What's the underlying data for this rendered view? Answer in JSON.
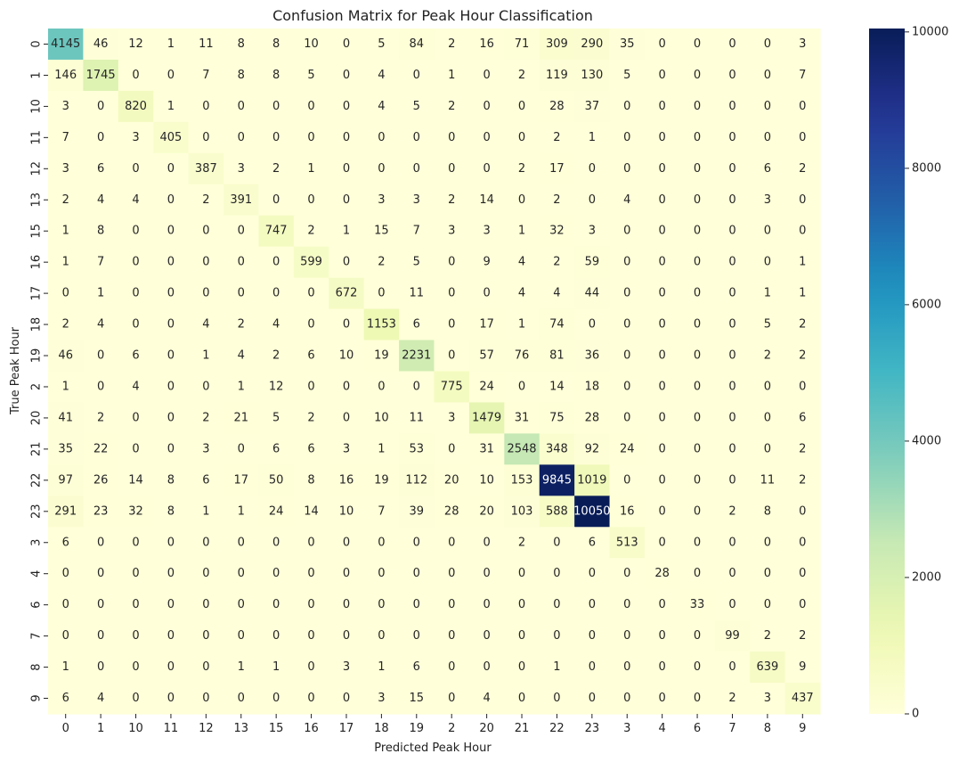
{
  "chart_data": {
    "type": "heatmap",
    "title": "Confusion Matrix for Peak Hour Classification",
    "xlabel": "Predicted Peak Hour",
    "ylabel": "True Peak Hour",
    "x_categories": [
      "0",
      "1",
      "10",
      "11",
      "12",
      "13",
      "15",
      "16",
      "17",
      "18",
      "19",
      "2",
      "20",
      "21",
      "22",
      "23",
      "3",
      "4",
      "6",
      "7",
      "8",
      "9"
    ],
    "y_categories": [
      "0",
      "1",
      "10",
      "11",
      "12",
      "13",
      "15",
      "16",
      "17",
      "18",
      "19",
      "2",
      "20",
      "21",
      "22",
      "23",
      "3",
      "4",
      "6",
      "7",
      "8",
      "9"
    ],
    "values": [
      [
        4145,
        46,
        12,
        1,
        11,
        8,
        8,
        10,
        0,
        5,
        84,
        2,
        16,
        71,
        309,
        290,
        35,
        0,
        0,
        0,
        0,
        3
      ],
      [
        146,
        1745,
        0,
        0,
        7,
        8,
        8,
        5,
        0,
        4,
        0,
        1,
        0,
        2,
        119,
        130,
        5,
        0,
        0,
        0,
        0,
        7
      ],
      [
        3,
        0,
        820,
        1,
        0,
        0,
        0,
        0,
        0,
        4,
        5,
        2,
        0,
        0,
        28,
        37,
        0,
        0,
        0,
        0,
        0,
        0
      ],
      [
        7,
        0,
        3,
        405,
        0,
        0,
        0,
        0,
        0,
        0,
        0,
        0,
        0,
        0,
        2,
        1,
        0,
        0,
        0,
        0,
        0,
        0
      ],
      [
        3,
        6,
        0,
        0,
        387,
        3,
        2,
        1,
        0,
        0,
        0,
        0,
        0,
        2,
        17,
        0,
        0,
        0,
        0,
        0,
        6,
        2
      ],
      [
        2,
        4,
        4,
        0,
        2,
        391,
        0,
        0,
        0,
        3,
        3,
        2,
        14,
        0,
        2,
        0,
        4,
        0,
        0,
        0,
        3,
        0
      ],
      [
        1,
        8,
        0,
        0,
        0,
        0,
        747,
        2,
        1,
        15,
        7,
        3,
        3,
        1,
        32,
        3,
        0,
        0,
        0,
        0,
        0,
        0
      ],
      [
        1,
        7,
        0,
        0,
        0,
        0,
        0,
        599,
        0,
        2,
        5,
        0,
        9,
        4,
        2,
        59,
        0,
        0,
        0,
        0,
        0,
        1
      ],
      [
        0,
        1,
        0,
        0,
        0,
        0,
        0,
        0,
        672,
        0,
        11,
        0,
        0,
        4,
        4,
        44,
        0,
        0,
        0,
        0,
        1,
        1
      ],
      [
        2,
        4,
        0,
        0,
        4,
        2,
        4,
        0,
        0,
        1153,
        6,
        0,
        17,
        1,
        74,
        0,
        0,
        0,
        0,
        0,
        5,
        2
      ],
      [
        46,
        0,
        6,
        0,
        1,
        4,
        2,
        6,
        10,
        19,
        2231,
        0,
        57,
        76,
        81,
        36,
        0,
        0,
        0,
        0,
        2,
        2
      ],
      [
        1,
        0,
        4,
        0,
        0,
        1,
        12,
        0,
        0,
        0,
        0,
        775,
        24,
        0,
        14,
        18,
        0,
        0,
        0,
        0,
        0,
        0
      ],
      [
        41,
        2,
        0,
        0,
        2,
        21,
        5,
        2,
        0,
        10,
        11,
        3,
        1479,
        31,
        75,
        28,
        0,
        0,
        0,
        0,
        0,
        6
      ],
      [
        35,
        22,
        0,
        0,
        3,
        0,
        6,
        6,
        3,
        1,
        53,
        0,
        31,
        2548,
        348,
        92,
        24,
        0,
        0,
        0,
        0,
        2
      ],
      [
        97,
        26,
        14,
        8,
        6,
        17,
        50,
        8,
        16,
        19,
        112,
        20,
        10,
        153,
        9845,
        1019,
        0,
        0,
        0,
        0,
        11,
        2
      ],
      [
        291,
        23,
        32,
        8,
        1,
        1,
        24,
        14,
        10,
        7,
        39,
        28,
        20,
        103,
        588,
        10050,
        16,
        0,
        0,
        2,
        8,
        0
      ],
      [
        6,
        0,
        0,
        0,
        0,
        0,
        0,
        0,
        0,
        0,
        0,
        0,
        0,
        2,
        0,
        6,
        513,
        0,
        0,
        0,
        0,
        0
      ],
      [
        0,
        0,
        0,
        0,
        0,
        0,
        0,
        0,
        0,
        0,
        0,
        0,
        0,
        0,
        0,
        0,
        0,
        28,
        0,
        0,
        0,
        0
      ],
      [
        0,
        0,
        0,
        0,
        0,
        0,
        0,
        0,
        0,
        0,
        0,
        0,
        0,
        0,
        0,
        0,
        0,
        0,
        33,
        0,
        0,
        0
      ],
      [
        0,
        0,
        0,
        0,
        0,
        0,
        0,
        0,
        0,
        0,
        0,
        0,
        0,
        0,
        0,
        0,
        0,
        0,
        0,
        99,
        2,
        2
      ],
      [
        1,
        0,
        0,
        0,
        0,
        1,
        1,
        0,
        3,
        1,
        6,
        0,
        0,
        0,
        1,
        0,
        0,
        0,
        0,
        0,
        639,
        9
      ],
      [
        6,
        4,
        0,
        0,
        0,
        0,
        0,
        0,
        0,
        3,
        15,
        0,
        4,
        0,
        0,
        0,
        0,
        0,
        0,
        2,
        3,
        437
      ]
    ],
    "colormap": "YlGnBu",
    "vmin": 0,
    "vmax": 10050,
    "colorbar_ticks": [
      0,
      2000,
      4000,
      6000,
      8000,
      10000
    ],
    "colorbar_tick_labels": [
      "0",
      "2000",
      "4000",
      "6000",
      "8000",
      "10000"
    ]
  }
}
